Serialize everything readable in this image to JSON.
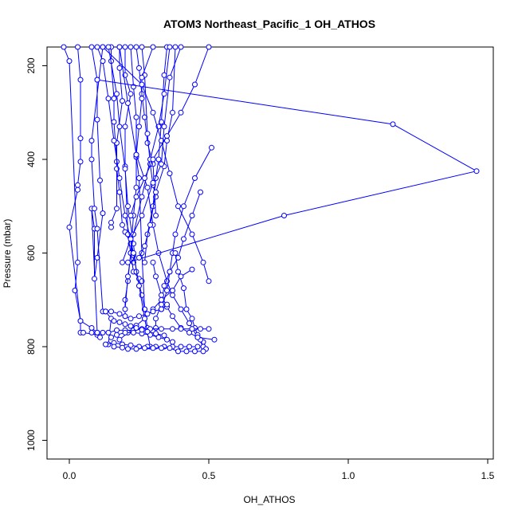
{
  "chart_data": {
    "type": "line",
    "title": "ATOM3 Northeast_Pacific_1 OH_ATHOS",
    "xlabel": "OH_ATHOS",
    "ylabel": "Pressure (mbar)",
    "xlim": [
      -0.08,
      1.52
    ],
    "ylim": [
      1040,
      160
    ],
    "y_reversed": true,
    "x_ticks": [
      "0.0",
      "0.5",
      "1.0",
      "1.5"
    ],
    "y_ticks": [
      "200",
      "400",
      "600",
      "800",
      "1000"
    ],
    "grid": false,
    "legend": "none",
    "series_color": "#0000ff",
    "series": [
      {
        "x": [
          -0.02,
          0.0,
          0.03,
          0.02,
          0.04,
          0.04,
          0.05,
          0.1
        ],
        "y": [
          160,
          190,
          620,
          680,
          745,
          770,
          770,
          775
        ]
      },
      {
        "x": [
          0.03,
          0.04,
          0.04,
          0.04,
          0.03,
          0.03,
          0.0,
          0.04,
          0.08,
          0.1
        ],
        "y": [
          160,
          230,
          355,
          405,
          455,
          465,
          545,
          745,
          760,
          770
        ]
      },
      {
        "x": [
          0.08,
          0.1,
          0.1,
          0.11,
          0.12,
          0.1,
          0.09,
          0.09,
          0.08,
          0.1,
          0.11
        ],
        "y": [
          160,
          230,
          315,
          445,
          515,
          610,
          655,
          548,
          505,
          770,
          780
        ]
      },
      {
        "x": [
          0.12,
          0.08,
          0.08,
          0.09,
          0.1,
          0.12,
          0.13,
          0.15,
          0.14
        ],
        "y": [
          160,
          360,
          400,
          505,
          548,
          725,
          725,
          740,
          795
        ]
      },
      {
        "x": [
          0.15,
          0.15,
          0.16,
          0.16,
          0.17,
          0.17,
          0.15,
          0.15
        ],
        "y": [
          160,
          190,
          270,
          320,
          405,
          505,
          535,
          545
        ]
      },
      {
        "x": [
          0.18,
          0.18,
          0.19,
          0.17,
          0.17,
          0.18,
          0.19,
          0.2,
          0.22,
          0.23,
          0.23
        ],
        "y": [
          160,
          205,
          275,
          365,
          420,
          470,
          540,
          555,
          580,
          605,
          620
        ]
      },
      {
        "x": [
          0.2,
          0.2,
          0.22,
          0.2,
          0.2,
          0.21,
          0.22,
          0.23,
          0.25,
          0.26
        ],
        "y": [
          160,
          220,
          260,
          330,
          415,
          560,
          600,
          640,
          655,
          660
        ]
      },
      {
        "x": [
          0.22,
          0.23,
          0.24,
          0.24,
          0.25,
          0.26,
          0.27,
          0.28
        ],
        "y": [
          160,
          245,
          310,
          395,
          440,
          600,
          720,
          760
        ]
      },
      {
        "x": [
          0.24,
          0.25,
          0.26,
          0.27,
          0.28,
          0.3,
          0.31
        ],
        "y": [
          160,
          205,
          260,
          310,
          365,
          410,
          520
        ]
      },
      {
        "x": [
          0.26,
          0.27,
          0.28,
          0.29,
          0.3,
          0.31
        ],
        "y": [
          160,
          220,
          345,
          410,
          455,
          480
        ]
      },
      {
        "x": [
          0.3,
          0.26,
          0.26,
          0.25,
          0.24,
          0.24,
          0.23,
          0.22,
          0.21,
          0.2,
          0.2
        ],
        "y": [
          160,
          225,
          270,
          330,
          390,
          460,
          520,
          600,
          660,
          700,
          735
        ]
      },
      {
        "x": [
          0.35,
          0.34,
          0.33,
          0.32,
          0.31,
          0.3,
          0.28,
          0.27
        ],
        "y": [
          160,
          220,
          320,
          400,
          440,
          500,
          560,
          620
        ]
      },
      {
        "x": [
          0.18,
          0.21,
          0.24,
          0.28,
          0.3,
          0.32,
          0.35,
          0.37,
          0.4,
          0.43,
          0.46,
          0.48
        ],
        "y": [
          160,
          280,
          390,
          460,
          540,
          600,
          660,
          690,
          720,
          750,
          780,
          790
        ]
      },
      {
        "x": [
          0.14,
          0.17,
          0.18,
          0.2,
          0.21,
          0.23,
          0.24,
          0.26,
          0.27
        ],
        "y": [
          160,
          260,
          330,
          420,
          500,
          580,
          640,
          690,
          720
        ]
      },
      {
        "x": [
          0.1,
          0.12,
          0.14,
          0.16,
          0.18,
          0.2,
          0.23,
          0.25,
          0.27,
          0.29
        ],
        "y": [
          160,
          190,
          270,
          360,
          440,
          520,
          600,
          670,
          740,
          800
        ]
      },
      {
        "x": [
          0.36,
          0.34,
          0.32,
          0.29,
          0.26,
          0.23,
          0.21,
          0.2
        ],
        "y": [
          160,
          260,
          330,
          400,
          480,
          560,
          650,
          720
        ]
      },
      {
        "x": [
          0.1,
          1.16,
          1.46,
          0.77,
          0.21
        ],
        "y": [
          230,
          325,
          425,
          520,
          620
        ]
      },
      {
        "x": [
          0.12,
          0.26,
          0.3,
          0.33,
          0.36,
          0.39,
          0.44,
          0.48,
          0.5
        ],
        "y": [
          160,
          240,
          300,
          360,
          430,
          500,
          560,
          620,
          660
        ]
      },
      {
        "x": [
          0.38,
          0.37,
          0.35,
          0.34,
          0.31,
          0.29,
          0.27,
          0.25
        ],
        "y": [
          160,
          300,
          360,
          415,
          470,
          540,
          585,
          610
        ]
      },
      {
        "x": [
          0.4,
          0.36,
          0.34,
          0.33,
          0.3,
          0.26,
          0.22,
          0.19
        ],
        "y": [
          160,
          225,
          330,
          410,
          450,
          520,
          570,
          620
        ]
      },
      {
        "x": [
          0.5,
          0.45,
          0.4,
          0.35,
          0.3,
          0.27,
          0.24,
          0.22
        ],
        "y": [
          160,
          240,
          300,
          350,
          400,
          440,
          480,
          520
        ]
      },
      {
        "x": [
          0.51,
          0.45,
          0.41,
          0.38,
          0.37,
          0.36,
          0.35,
          0.33
        ],
        "y": [
          375,
          440,
          500,
          560,
          600,
          640,
          680,
          720
        ]
      },
      {
        "x": [
          0.47,
          0.44,
          0.41,
          0.39,
          0.36,
          0.34,
          0.33,
          0.31,
          0.31
        ],
        "y": [
          470,
          520,
          570,
          610,
          640,
          670,
          710,
          740,
          760
        ]
      },
      {
        "x": [
          0.38,
          0.39,
          0.41,
          0.42,
          0.44,
          0.45,
          0.46,
          0.47,
          0.48,
          0.49
        ],
        "y": [
          600,
          640,
          675,
          720,
          740,
          760,
          775,
          785,
          800,
          805
        ]
      },
      {
        "x": [
          0.3,
          0.31,
          0.33,
          0.35,
          0.37,
          0.4,
          0.43,
          0.46,
          0.52
        ],
        "y": [
          620,
          650,
          690,
          715,
          735,
          760,
          770,
          780,
          785
        ]
      },
      {
        "x": [
          0.44,
          0.4,
          0.37,
          0.33,
          0.3,
          0.27,
          0.24,
          0.21,
          0.18
        ],
        "y": [
          635,
          650,
          680,
          700,
          720,
          740,
          755,
          770,
          785
        ]
      },
      {
        "x": [
          0.13,
          0.15,
          0.18,
          0.2,
          0.22,
          0.25,
          0.28,
          0.3,
          0.33,
          0.35
        ],
        "y": [
          725,
          725,
          730,
          735,
          740,
          735,
          730,
          725,
          720,
          710
        ]
      },
      {
        "x": [
          0.08,
          0.1,
          0.12,
          0.14,
          0.17,
          0.2,
          0.23,
          0.26,
          0.29,
          0.33,
          0.37,
          0.4,
          0.44,
          0.47,
          0.5
        ],
        "y": [
          770,
          770,
          770,
          770,
          765,
          765,
          765,
          762,
          762,
          762,
          762,
          762,
          762,
          762,
          762
        ]
      },
      {
        "x": [
          0.13,
          0.16,
          0.19,
          0.22,
          0.25,
          0.28,
          0.31,
          0.34,
          0.37,
          0.4,
          0.43,
          0.46
        ],
        "y": [
          795,
          792,
          795,
          797,
          800,
          800,
          800,
          800,
          800,
          800,
          800,
          800
        ]
      },
      {
        "x": [
          0.16,
          0.19,
          0.21,
          0.24,
          0.27,
          0.3,
          0.33,
          0.36,
          0.39,
          0.42,
          0.45,
          0.48
        ],
        "y": [
          800,
          802,
          805,
          805,
          803,
          803,
          803,
          803,
          810,
          810,
          810,
          810
        ]
      },
      {
        "x": [
          0.15,
          0.17,
          0.2,
          0.23,
          0.26,
          0.29,
          0.32,
          0.35,
          0.37
        ],
        "y": [
          780,
          775,
          770,
          770,
          772,
          775,
          780,
          785,
          790
        ]
      },
      {
        "x": [
          0.16,
          0.18,
          0.2,
          0.22,
          0.24,
          0.26,
          0.28,
          0.31,
          0.34
        ],
        "y": [
          745,
          748,
          752,
          756,
          760,
          764,
          768,
          772,
          776
        ]
      }
    ]
  }
}
